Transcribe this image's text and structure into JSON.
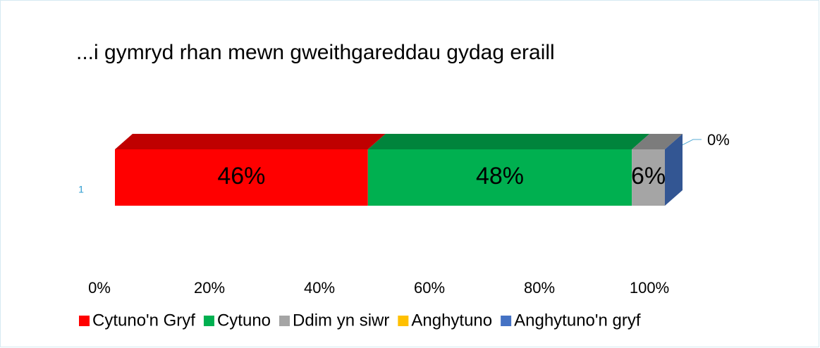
{
  "chart_data": {
    "type": "stacked_bar_3d_horizontal",
    "title": "...i gymryd rhan mewn gweithgareddau gydag eraill",
    "categories": [
      "1"
    ],
    "series": [
      {
        "name": "Cytuno'n Gryf",
        "color": "#ff0000",
        "values": [
          46
        ],
        "value_labels": [
          "46%"
        ]
      },
      {
        "name": "Cytuno",
        "color": "#00b050",
        "values": [
          48
        ],
        "value_labels": [
          "48%"
        ]
      },
      {
        "name": "Ddim yn siwr",
        "color": "#a5a5a5",
        "values": [
          6
        ],
        "value_labels": [
          "6%"
        ]
      },
      {
        "name": "Anghytuno",
        "color": "#ffc000",
        "values": [
          0
        ]
      },
      {
        "name": "Anghytuno'n gryf",
        "color": "#4472c4",
        "values": [
          0
        ],
        "value_labels": [
          "0%"
        ]
      }
    ],
    "xlim": [
      0,
      100
    ],
    "xticks": [
      {
        "value": 0,
        "label": "0%"
      },
      {
        "value": 20,
        "label": "20%"
      },
      {
        "value": 40,
        "label": "40%"
      },
      {
        "value": 60,
        "label": "60%"
      },
      {
        "value": 80,
        "label": "80%"
      },
      {
        "value": 100,
        "label": "100%"
      }
    ],
    "legend": "bottom"
  }
}
